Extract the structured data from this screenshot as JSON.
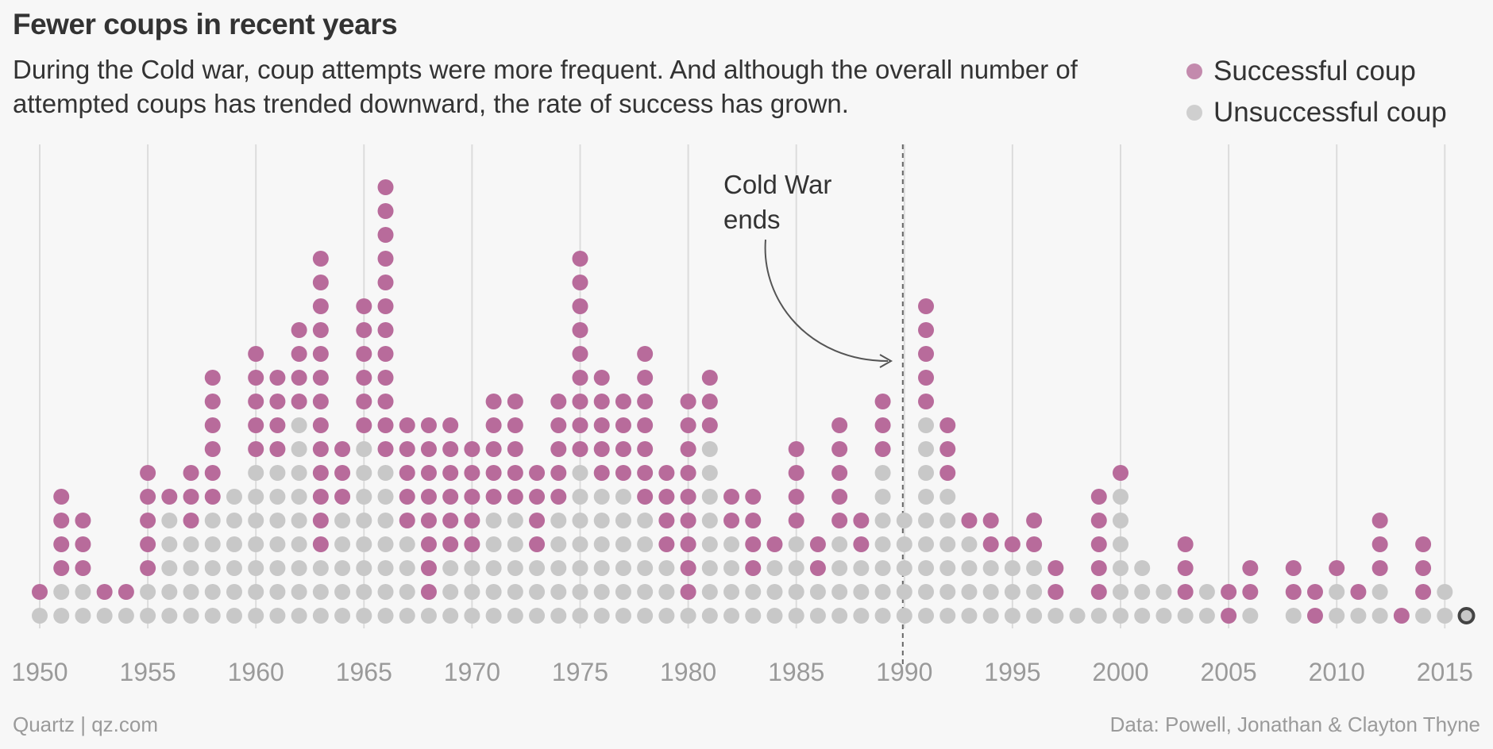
{
  "title": "Fewer coups in recent years",
  "subtitle": "During the Cold war, coup attempts were more frequent. And although the overall number of attempted coups has trended downward, the rate of success has grown.",
  "legend": [
    {
      "label": "Successful coup",
      "color": "#b86b9b"
    },
    {
      "label": "Unsuccessful coup",
      "color": "#c8c8c8"
    }
  ],
  "footer": {
    "source_left": "Quartz | qz.com",
    "source_right": "Data: Powell, Jonathan & Clayton Thyne"
  },
  "annotation": {
    "text_line1": "Cold War",
    "text_line2": "ends",
    "year": 1990
  },
  "chart_data": {
    "type": "scatter",
    "subtype": "stacked dot plot",
    "title": "Fewer coups in recent years",
    "xlabel": "",
    "ylabel": "",
    "xlim": [
      1950,
      2016
    ],
    "x_ticks": [
      1950,
      1955,
      1960,
      1965,
      1970,
      1975,
      1980,
      1985,
      1990,
      1995,
      2000,
      2005,
      2010,
      2015
    ],
    "grid": "vertical lines at tick years",
    "legend_position": "top-right",
    "colors": {
      "successful": "#b86b9b",
      "unsuccessful": "#c8c8c8",
      "highlight_outline": "#444444"
    },
    "series": [
      {
        "name": "Unsuccessful coup",
        "key": "unsuccessful"
      },
      {
        "name": "Successful coup",
        "key": "successful"
      }
    ],
    "years": [
      {
        "year": 1950,
        "unsuccessful": 1,
        "successful": 1
      },
      {
        "year": 1951,
        "unsuccessful": 2,
        "successful": 4
      },
      {
        "year": 1952,
        "unsuccessful": 2,
        "successful": 3
      },
      {
        "year": 1953,
        "unsuccessful": 1,
        "successful": 1
      },
      {
        "year": 1954,
        "unsuccessful": 1,
        "successful": 1
      },
      {
        "year": 1955,
        "unsuccessful": 2,
        "successful": 5
      },
      {
        "year": 1956,
        "unsuccessful": 5,
        "successful": 1
      },
      {
        "year": 1957,
        "unsuccessful": 4,
        "successful": 3
      },
      {
        "year": 1958,
        "unsuccessful": 5,
        "successful": 6
      },
      {
        "year": 1959,
        "unsuccessful": 6,
        "successful": 0
      },
      {
        "year": 1960,
        "unsuccessful": 7,
        "successful": 5
      },
      {
        "year": 1961,
        "unsuccessful": 7,
        "successful": 4
      },
      {
        "year": 1962,
        "unsuccessful": 9,
        "successful": 4
      },
      {
        "year": 1963,
        "unsuccessful": 3,
        "successful": 13
      },
      {
        "year": 1964,
        "unsuccessful": 5,
        "successful": 3
      },
      {
        "year": 1965,
        "unsuccessful": 8,
        "successful": 6
      },
      {
        "year": 1966,
        "unsuccessful": 7,
        "successful": 12
      },
      {
        "year": 1967,
        "unsuccessful": 4,
        "successful": 5
      },
      {
        "year": 1968,
        "unsuccessful": 1,
        "successful": 8
      },
      {
        "year": 1969,
        "unsuccessful": 3,
        "successful": 6
      },
      {
        "year": 1970,
        "unsuccessful": 3,
        "successful": 5
      },
      {
        "year": 1971,
        "unsuccessful": 5,
        "successful": 5
      },
      {
        "year": 1972,
        "unsuccessful": 5,
        "successful": 5
      },
      {
        "year": 1973,
        "unsuccessful": 3,
        "successful": 4
      },
      {
        "year": 1974,
        "unsuccessful": 5,
        "successful": 5
      },
      {
        "year": 1975,
        "unsuccessful": 7,
        "successful": 9
      },
      {
        "year": 1976,
        "unsuccessful": 6,
        "successful": 5
      },
      {
        "year": 1977,
        "unsuccessful": 6,
        "successful": 4
      },
      {
        "year": 1978,
        "unsuccessful": 5,
        "successful": 7
      },
      {
        "year": 1979,
        "unsuccessful": 3,
        "successful": 4
      },
      {
        "year": 1980,
        "unsuccessful": 1,
        "successful": 9
      },
      {
        "year": 1981,
        "unsuccessful": 8,
        "successful": 3
      },
      {
        "year": 1982,
        "unsuccessful": 4,
        "successful": 2
      },
      {
        "year": 1983,
        "unsuccessful": 2,
        "successful": 4
      },
      {
        "year": 1984,
        "unsuccessful": 3,
        "successful": 1
      },
      {
        "year": 1985,
        "unsuccessful": 4,
        "successful": 4
      },
      {
        "year": 1986,
        "unsuccessful": 2,
        "successful": 2
      },
      {
        "year": 1987,
        "unsuccessful": 4,
        "successful": 5
      },
      {
        "year": 1988,
        "unsuccessful": 3,
        "successful": 2
      },
      {
        "year": 1989,
        "unsuccessful": 7,
        "successful": 3
      },
      {
        "year": 1990,
        "unsuccessful": 5,
        "successful": 0
      },
      {
        "year": 1991,
        "unsuccessful": 9,
        "successful": 5
      },
      {
        "year": 1992,
        "unsuccessful": 6,
        "successful": 3
      },
      {
        "year": 1993,
        "unsuccessful": 4,
        "successful": 1
      },
      {
        "year": 1994,
        "unsuccessful": 3,
        "successful": 2
      },
      {
        "year": 1995,
        "unsuccessful": 3,
        "successful": 1
      },
      {
        "year": 1996,
        "unsuccessful": 3,
        "successful": 2
      },
      {
        "year": 1997,
        "unsuccessful": 1,
        "successful": 2
      },
      {
        "year": 1998,
        "unsuccessful": 1,
        "successful": 0
      },
      {
        "year": 1999,
        "unsuccessful": 1,
        "successful": 5
      },
      {
        "year": 2000,
        "unsuccessful": 6,
        "successful": 1
      },
      {
        "year": 2001,
        "unsuccessful": 3,
        "successful": 0
      },
      {
        "year": 2002,
        "unsuccessful": 2,
        "successful": 0
      },
      {
        "year": 2003,
        "unsuccessful": 1,
        "successful": 3
      },
      {
        "year": 2004,
        "unsuccessful": 2,
        "successful": 0
      },
      {
        "year": 2005,
        "unsuccessful": 0,
        "successful": 2
      },
      {
        "year": 2006,
        "unsuccessful": 1,
        "successful": 2
      },
      {
        "year": 2007,
        "unsuccessful": 0,
        "successful": 0
      },
      {
        "year": 2008,
        "unsuccessful": 1,
        "successful": 2
      },
      {
        "year": 2009,
        "unsuccessful": 0,
        "successful": 2
      },
      {
        "year": 2010,
        "unsuccessful": 2,
        "successful": 1
      },
      {
        "year": 2011,
        "unsuccessful": 1,
        "successful": 1
      },
      {
        "year": 2012,
        "unsuccessful": 2,
        "successful": 3
      },
      {
        "year": 2013,
        "unsuccessful": 0,
        "successful": 1
      },
      {
        "year": 2014,
        "unsuccessful": 1,
        "successful": 3
      },
      {
        "year": 2015,
        "unsuccessful": 2,
        "successful": 0
      },
      {
        "year": 2016,
        "unsuccessful": 1,
        "successful": 0,
        "highlight": true
      }
    ]
  }
}
